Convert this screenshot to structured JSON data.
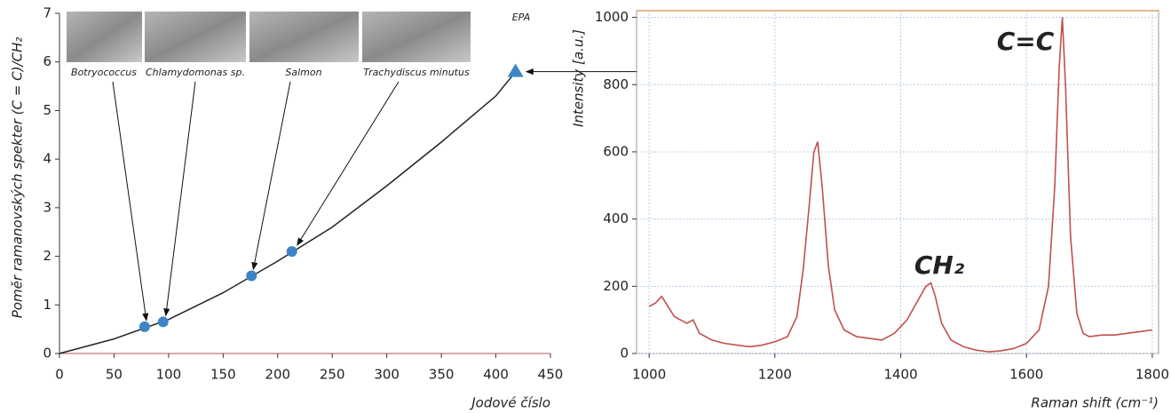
{
  "chart_data": [
    {
      "type": "scatter",
      "x_label": "Jodové číslo",
      "y_label": "Poměr ramanovských spekter (C = C)/CH₂",
      "x": [
        78,
        95,
        176,
        213,
        418
      ],
      "values": [
        0.55,
        0.65,
        1.6,
        2.1,
        5.8
      ],
      "point_labels": [
        "Botryococcus",
        "Chlamydomonas sp.",
        "Salmon",
        "Trachydiscus minutus",
        "EPA"
      ],
      "markers": [
        "circle",
        "circle",
        "circle",
        "circle",
        "triangle"
      ],
      "color": "#3d85c6",
      "curve": {
        "x": [
          0,
          50,
          100,
          150,
          200,
          250,
          300,
          350,
          400,
          420
        ],
        "values": [
          0,
          0.3,
          0.7,
          1.25,
          1.9,
          2.6,
          3.45,
          4.35,
          5.3,
          5.85
        ],
        "color": "#222222"
      },
      "xlim": [
        0,
        450
      ],
      "ylim": [
        0,
        7
      ],
      "xticks": [
        0,
        50,
        100,
        150,
        200,
        250,
        300,
        350,
        400,
        450
      ],
      "yticks": [
        0,
        1,
        2,
        3,
        4,
        5,
        6,
        7
      ],
      "grid": false
    },
    {
      "type": "line",
      "x_label": "Raman shift (cm⁻¹)",
      "y_label": "Intensity [a.u.]",
      "x": [
        1000,
        1010,
        1020,
        1030,
        1040,
        1050,
        1060,
        1070,
        1080,
        1100,
        1120,
        1140,
        1160,
        1180,
        1200,
        1220,
        1235,
        1245,
        1255,
        1262,
        1268,
        1275,
        1285,
        1295,
        1310,
        1330,
        1350,
        1370,
        1390,
        1410,
        1425,
        1440,
        1448,
        1455,
        1465,
        1480,
        1500,
        1520,
        1540,
        1560,
        1580,
        1600,
        1620,
        1635,
        1645,
        1652,
        1657,
        1662,
        1670,
        1680,
        1690,
        1700,
        1720,
        1740,
        1760,
        1780,
        1800
      ],
      "values": [
        140,
        150,
        170,
        140,
        110,
        100,
        90,
        100,
        60,
        40,
        30,
        25,
        20,
        25,
        35,
        50,
        110,
        250,
        450,
        600,
        630,
        500,
        260,
        130,
        70,
        50,
        45,
        40,
        60,
        100,
        150,
        200,
        210,
        170,
        90,
        40,
        20,
        10,
        5,
        8,
        15,
        30,
        70,
        200,
        500,
        850,
        1000,
        800,
        350,
        120,
        60,
        50,
        55,
        55,
        60,
        65,
        70
      ],
      "color": "#c0504d",
      "annotations": [
        "C=C",
        "CH₂"
      ],
      "xlim": [
        980,
        1810
      ],
      "ylim": [
        0,
        1020
      ],
      "xticks": [
        1000,
        1200,
        1400,
        1600,
        1800
      ],
      "yticks": [
        0,
        200,
        400,
        600,
        800,
        1000
      ],
      "grid": true
    }
  ]
}
